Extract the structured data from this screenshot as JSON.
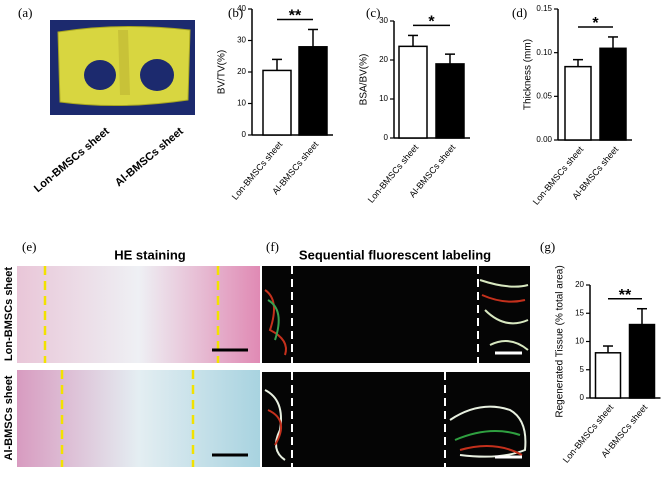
{
  "panel_a": {
    "label": "(a)",
    "labels": [
      "Lon-BMSCs sheet",
      "Al-BMSCs sheet"
    ]
  },
  "panel_e": {
    "label": "(e)",
    "title": "HE staining",
    "rows": [
      "Lon-BMSCs sheet",
      "Al-BMSCs sheet"
    ]
  },
  "panel_f": {
    "label": "(f)",
    "title": "Sequential fluorescent labeling"
  },
  "chart_data": [
    {
      "type": "bar",
      "panel": "(b)",
      "ylabel": "BV/TV(%)",
      "categories": [
        "Lon-BMSCs sheet",
        "Al-BMSCs sheet"
      ],
      "values": [
        20.5,
        28
      ],
      "errors": [
        3.5,
        5.5
      ],
      "colors": [
        "#ffffff",
        "#000000"
      ],
      "ylim": [
        0,
        40
      ],
      "yticks": [
        0,
        10,
        20,
        30,
        40
      ],
      "annotation": "**"
    },
    {
      "type": "bar",
      "panel": "(c)",
      "ylabel": "BSA/BV(%)",
      "categories": [
        "Lon-BMSCs sheet",
        "Al-BMSCs sheet"
      ],
      "values": [
        23.5,
        19
      ],
      "errors": [
        2.8,
        2.5
      ],
      "colors": [
        "#ffffff",
        "#000000"
      ],
      "ylim": [
        0,
        30
      ],
      "yticks": [
        0,
        10,
        20,
        30
      ],
      "annotation": "*"
    },
    {
      "type": "bar",
      "panel": "(d)",
      "ylabel": "Thickness (mm)",
      "categories": [
        "Lon-BMSCs sheet",
        "Al-BMSCs sheet"
      ],
      "values": [
        0.084,
        0.105
      ],
      "errors": [
        0.008,
        0.013
      ],
      "colors": [
        "#ffffff",
        "#000000"
      ],
      "ylim": [
        0,
        0.15
      ],
      "yticks": [
        {
          "value": 0,
          "label": "0.00"
        },
        {
          "value": 0.05,
          "label": "0.05"
        },
        {
          "value": 0.1,
          "label": "0.10"
        },
        {
          "value": 0.15,
          "label": "0.15"
        }
      ],
      "annotation": "*"
    },
    {
      "type": "bar",
      "panel": "(g)",
      "ylabel": "Regenerated Tissue (% total area)",
      "categories": [
        "Lon-BMSCs sheet",
        "Al-BMSCs sheet"
      ],
      "values": [
        8,
        13
      ],
      "errors": [
        1.2,
        2.8
      ],
      "colors": [
        "#ffffff",
        "#000000"
      ],
      "ylim": [
        0,
        20
      ],
      "yticks": [
        0,
        5,
        10,
        15,
        20
      ],
      "annotation": "**"
    }
  ]
}
